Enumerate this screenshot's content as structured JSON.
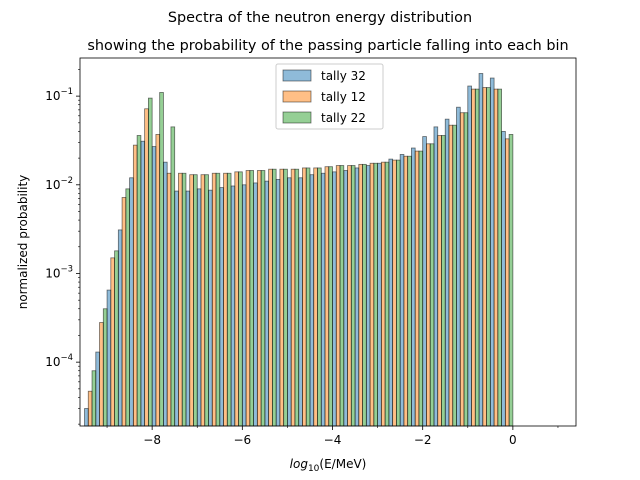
{
  "chart_data": {
    "type": "bar",
    "suptitle": "Spectra of the neutron energy distribution",
    "title": "showing the probability of the passing particle falling into each bin",
    "xlabel_prefix": "log",
    "xlabel_sub": "10",
    "xlabel_suffix": "(E/MeV)",
    "ylabel": "normalized probability",
    "xlim": [
      -9.6,
      1.4
    ],
    "ylog10lim": [
      -4.72,
      -0.57
    ],
    "x_ticks": [
      {
        "value": -8,
        "label": "−8"
      },
      {
        "value": -6,
        "label": "−6"
      },
      {
        "value": -4,
        "label": "−4"
      },
      {
        "value": -2,
        "label": "−2"
      },
      {
        "value": 0,
        "label": "0"
      }
    ],
    "y_ticks": [
      {
        "exp": -4,
        "base": "10",
        "sup": "−4"
      },
      {
        "exp": -3,
        "base": "10",
        "sup": "−3"
      },
      {
        "exp": -2,
        "base": "10",
        "sup": "−2"
      },
      {
        "exp": -1,
        "base": "10",
        "sup": "−1"
      }
    ],
    "bin_edges_start": -9.5,
    "bin_width": 0.25,
    "series": [
      {
        "name": "tally 32",
        "color": "#1f77b4",
        "values": [
          3e-05,
          0.00013,
          0.00065,
          0.0031,
          0.012,
          0.031,
          0.027,
          0.018,
          0.0085,
          0.0085,
          0.009,
          0.0087,
          0.0093,
          0.0097,
          0.01,
          0.0105,
          0.011,
          0.0115,
          0.012,
          0.012,
          0.013,
          0.0135,
          0.014,
          0.0145,
          0.0155,
          0.0165,
          0.0175,
          0.0195,
          0.022,
          0.026,
          0.035,
          0.045,
          0.055,
          0.075,
          0.13,
          0.18,
          0.16,
          0.04
        ]
      },
      {
        "name": "tally 12",
        "color": "#ff7f0e",
        "values": [
          4.7e-05,
          0.00028,
          0.0015,
          0.0072,
          0.028,
          0.072,
          0.037,
          0.0135,
          0.0135,
          0.013,
          0.013,
          0.0135,
          0.0135,
          0.014,
          0.0145,
          0.0145,
          0.015,
          0.015,
          0.015,
          0.0155,
          0.0155,
          0.016,
          0.0165,
          0.0165,
          0.017,
          0.0175,
          0.018,
          0.019,
          0.021,
          0.024,
          0.029,
          0.036,
          0.047,
          0.065,
          0.12,
          0.125,
          0.12,
          0.033
        ]
      },
      {
        "name": "tally 22",
        "color": "#2ca02c",
        "values": [
          8e-05,
          0.0004,
          0.0018,
          0.009,
          0.036,
          0.095,
          0.11,
          0.045,
          0.0135,
          0.013,
          0.013,
          0.0135,
          0.0135,
          0.014,
          0.0145,
          0.0145,
          0.015,
          0.015,
          0.015,
          0.0155,
          0.0155,
          0.016,
          0.0165,
          0.0165,
          0.017,
          0.0175,
          0.018,
          0.019,
          0.021,
          0.024,
          0.029,
          0.036,
          0.047,
          0.065,
          0.12,
          0.125,
          0.12,
          0.037
        ]
      }
    ],
    "legend_position": "upper-center"
  }
}
